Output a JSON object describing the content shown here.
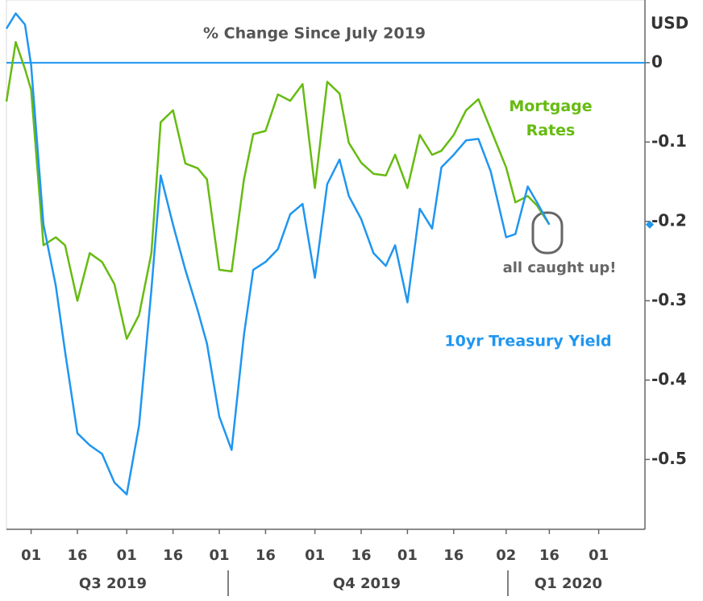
{
  "chart_data": {
    "type": "line",
    "title": "% Change Since July 2019",
    "y_axis_label": "USD",
    "x": [
      "2019-07-24",
      "2019-07-27",
      "2019-07-30",
      "2019-08-01",
      "2019-08-05",
      "2019-08-09",
      "2019-08-12",
      "2019-08-16",
      "2019-08-20",
      "2019-08-24",
      "2019-08-28",
      "2019-09-01",
      "2019-09-05",
      "2019-09-09",
      "2019-09-12",
      "2019-09-16",
      "2019-09-20",
      "2019-09-24",
      "2019-09-27",
      "2019-10-01",
      "2019-10-05",
      "2019-10-09",
      "2019-10-12",
      "2019-10-16",
      "2019-10-20",
      "2019-10-24",
      "2019-10-28",
      "2019-11-01",
      "2019-11-05",
      "2019-11-09",
      "2019-11-12",
      "2019-11-16",
      "2019-11-20",
      "2019-11-24",
      "2019-11-27",
      "2019-12-01",
      "2019-12-05",
      "2019-12-09",
      "2019-12-12",
      "2019-12-16",
      "2019-12-20",
      "2019-12-24",
      "2019-12-28",
      "2020-01-02",
      "2020-01-05",
      "2020-01-09",
      "2020-01-12",
      "2020-01-16"
    ],
    "series": [
      {
        "name": "Mortgage Rates",
        "color": "#66bb11",
        "values": [
          -0.049,
          0.026,
          -0.008,
          -0.034,
          -0.23,
          -0.22,
          -0.23,
          -0.3,
          -0.24,
          -0.251,
          -0.279,
          -0.348,
          -0.318,
          -0.24,
          -0.075,
          -0.06,
          -0.127,
          -0.133,
          -0.147,
          -0.261,
          -0.263,
          -0.147,
          -0.09,
          -0.086,
          -0.04,
          -0.048,
          -0.027,
          -0.158,
          -0.024,
          -0.039,
          -0.101,
          -0.126,
          -0.14,
          -0.142,
          -0.116,
          -0.158,
          -0.091,
          -0.116,
          -0.111,
          -0.091,
          -0.06,
          -0.046,
          -0.084,
          -0.132,
          -0.176,
          -0.168,
          -0.18,
          -0.204
        ]
      },
      {
        "name": "10yr Treasury Yield",
        "color": "#1f96f0",
        "values": [
          0.043,
          0.062,
          0.048,
          -0.003,
          -0.204,
          -0.281,
          -0.364,
          -0.467,
          -0.482,
          -0.493,
          -0.529,
          -0.544,
          -0.457,
          -0.286,
          -0.142,
          -0.204,
          -0.261,
          -0.312,
          -0.354,
          -0.446,
          -0.488,
          -0.343,
          -0.261,
          -0.251,
          -0.235,
          -0.191,
          -0.178,
          -0.271,
          -0.153,
          -0.122,
          -0.168,
          -0.197,
          -0.24,
          -0.256,
          -0.23,
          -0.302,
          -0.184,
          -0.209,
          -0.132,
          -0.116,
          -0.098,
          -0.096,
          -0.137,
          -0.22,
          -0.216,
          -0.156,
          -0.176,
          -0.204
        ]
      }
    ],
    "xlim": [
      "2019-07-24",
      "2020-02-16"
    ],
    "xticks": [
      {
        "value": "2019-08-01",
        "label": "01"
      },
      {
        "value": "2019-08-16",
        "label": "16"
      },
      {
        "value": "2019-09-01",
        "label": "01"
      },
      {
        "value": "2019-09-16",
        "label": "16"
      },
      {
        "value": "2019-10-01",
        "label": "01"
      },
      {
        "value": "2019-10-16",
        "label": "16"
      },
      {
        "value": "2019-11-01",
        "label": "01"
      },
      {
        "value": "2019-11-16",
        "label": "16"
      },
      {
        "value": "2019-12-01",
        "label": "01"
      },
      {
        "value": "2019-12-16",
        "label": "16"
      },
      {
        "value": "2020-01-02",
        "label": "02"
      },
      {
        "value": "2020-01-16",
        "label": "16"
      },
      {
        "value": "2020-02-01",
        "label": "01"
      }
    ],
    "quarter_labels": [
      "Q3 2019",
      "Q4 2019",
      "Q1 2020"
    ],
    "ylim": [
      -0.588,
      0.079
    ],
    "yticks": [
      0,
      -0.1,
      -0.2,
      -0.3,
      -0.4,
      -0.5
    ],
    "y_axis_side": "right",
    "grid": false,
    "reference_line": {
      "value": 0,
      "color": "#1f96f0"
    },
    "annotation": "all caught up!"
  }
}
